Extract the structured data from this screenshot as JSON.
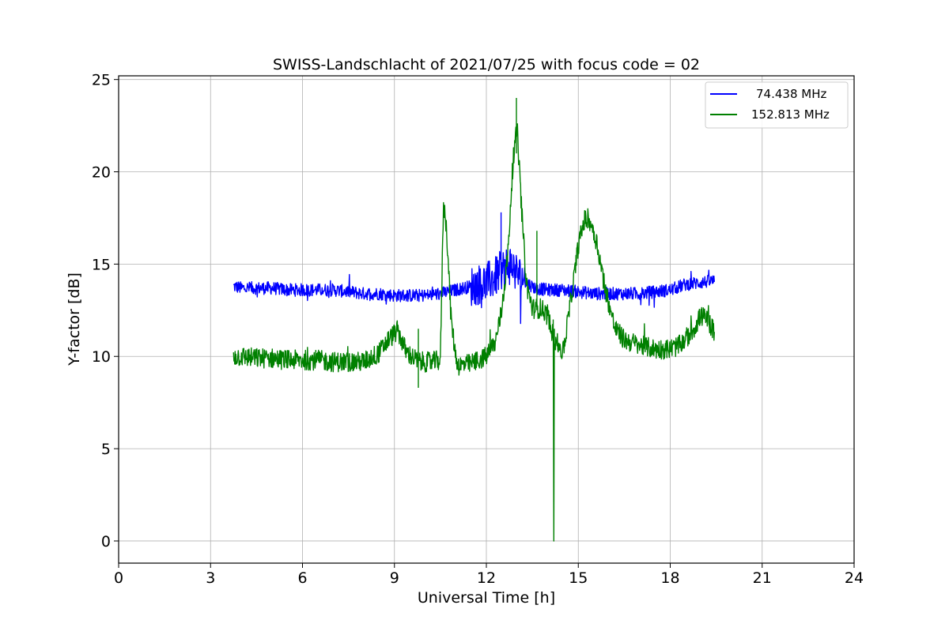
{
  "chart_data": {
    "type": "line",
    "title": "SWISS-Landschlacht of 2021/07/25 with focus code = 02",
    "xlabel": "Universal Time [h]",
    "ylabel": "Y-factor [dB]",
    "xlim": [
      0,
      24
    ],
    "ylim": [
      -1.2,
      25.2
    ],
    "xticks": [
      0,
      3,
      6,
      9,
      12,
      15,
      18,
      21,
      24
    ],
    "yticks": [
      0,
      5,
      10,
      15,
      20,
      25
    ],
    "grid": true,
    "legend_position": "top-right",
    "series": [
      {
        "name": "74.438 MHz",
        "color": "#0000ff",
        "x": [
          3.75,
          4.0,
          4.5,
          5.0,
          5.5,
          6.0,
          6.5,
          7.0,
          7.5,
          8.0,
          8.5,
          9.0,
          9.5,
          10.0,
          10.5,
          11.0,
          11.5,
          12.0,
          12.3,
          12.5,
          12.7,
          12.8,
          13.0,
          13.3,
          13.6,
          14.0,
          14.5,
          15.0,
          15.5,
          16.0,
          16.5,
          17.0,
          17.5,
          18.0,
          18.5,
          19.0,
          19.45
        ],
        "y": [
          13.8,
          13.7,
          13.7,
          13.7,
          13.6,
          13.6,
          13.6,
          13.6,
          13.5,
          13.4,
          13.4,
          13.3,
          13.3,
          13.3,
          13.4,
          13.6,
          13.8,
          14.0,
          14.3,
          14.7,
          14.9,
          15.0,
          14.5,
          14.0,
          13.7,
          13.6,
          13.6,
          13.5,
          13.4,
          13.4,
          13.4,
          13.4,
          13.5,
          13.6,
          13.9,
          14.0,
          14.1
        ],
        "noise": 0.35
      },
      {
        "name": "152.813 MHz",
        "color": "#008000",
        "x": [
          3.75,
          4.0,
          4.5,
          5.0,
          5.5,
          6.0,
          6.5,
          7.0,
          7.5,
          8.0,
          8.5,
          8.8,
          9.1,
          9.4,
          9.8,
          10.2,
          10.5,
          10.6,
          10.7,
          10.85,
          11.0,
          11.1,
          11.5,
          12.0,
          12.3,
          12.5,
          12.7,
          12.85,
          13.0,
          13.15,
          13.3,
          13.5,
          13.8,
          14.0,
          14.2,
          14.5,
          14.8,
          15.0,
          15.2,
          15.4,
          15.6,
          15.9,
          16.2,
          16.5,
          17.0,
          17.5,
          18.0,
          18.3,
          18.7,
          19.0,
          19.2,
          19.45
        ],
        "y": [
          10.0,
          10.0,
          9.9,
          9.9,
          9.8,
          9.8,
          9.8,
          9.7,
          9.7,
          9.7,
          10.2,
          10.9,
          11.4,
          10.2,
          9.7,
          9.7,
          9.8,
          18.3,
          17.0,
          12.0,
          10.0,
          9.5,
          9.6,
          10.0,
          10.8,
          12.5,
          15.5,
          20.0,
          22.5,
          18.0,
          14.0,
          12.6,
          12.6,
          12.2,
          11.0,
          10.2,
          13.5,
          16.0,
          17.4,
          17.3,
          16.2,
          13.5,
          11.5,
          10.9,
          10.6,
          10.4,
          10.4,
          10.6,
          11.3,
          12.2,
          12.0,
          11.3
        ],
        "noise": 0.55
      }
    ]
  }
}
